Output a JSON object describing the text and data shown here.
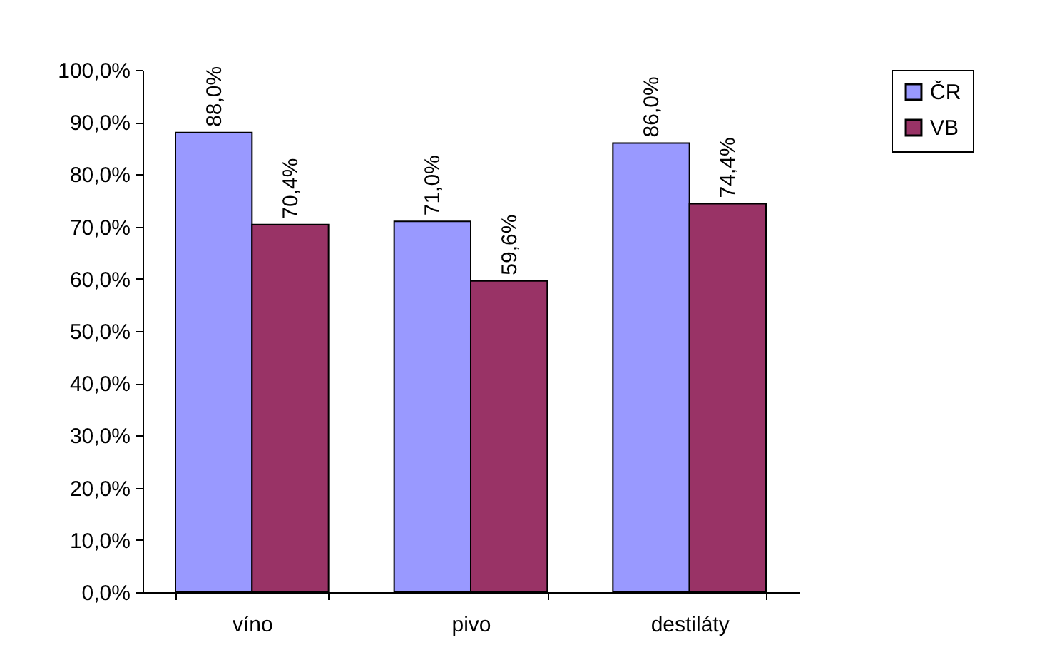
{
  "chart_data": {
    "type": "bar",
    "categories": [
      "víno",
      "pivo",
      "destiláty"
    ],
    "series": [
      {
        "name": "ČR",
        "color": "#9999ff",
        "values": [
          88.0,
          71.0,
          86.0
        ],
        "value_labels": [
          "88,0%",
          "71,0%",
          "86,0%"
        ]
      },
      {
        "name": "VB",
        "color": "#993366",
        "values": [
          70.4,
          59.6,
          74.4
        ],
        "value_labels": [
          "70,4%",
          "59,6%",
          "74,4%"
        ]
      }
    ],
    "ylim": [
      0,
      100
    ],
    "yticks": [
      {
        "value": 0,
        "label": "0,0%"
      },
      {
        "value": 10,
        "label": "10,0%"
      },
      {
        "value": 20,
        "label": "20,0%"
      },
      {
        "value": 30,
        "label": "30,0%"
      },
      {
        "value": 40,
        "label": "40,0%"
      },
      {
        "value": 50,
        "label": "50,0%"
      },
      {
        "value": 60,
        "label": "60,0%"
      },
      {
        "value": 70,
        "label": "70,0%"
      },
      {
        "value": 80,
        "label": "80,0%"
      },
      {
        "value": 90,
        "label": "90,0%"
      },
      {
        "value": 100,
        "label": "100,0%"
      }
    ],
    "grid": false,
    "legend": "right"
  }
}
